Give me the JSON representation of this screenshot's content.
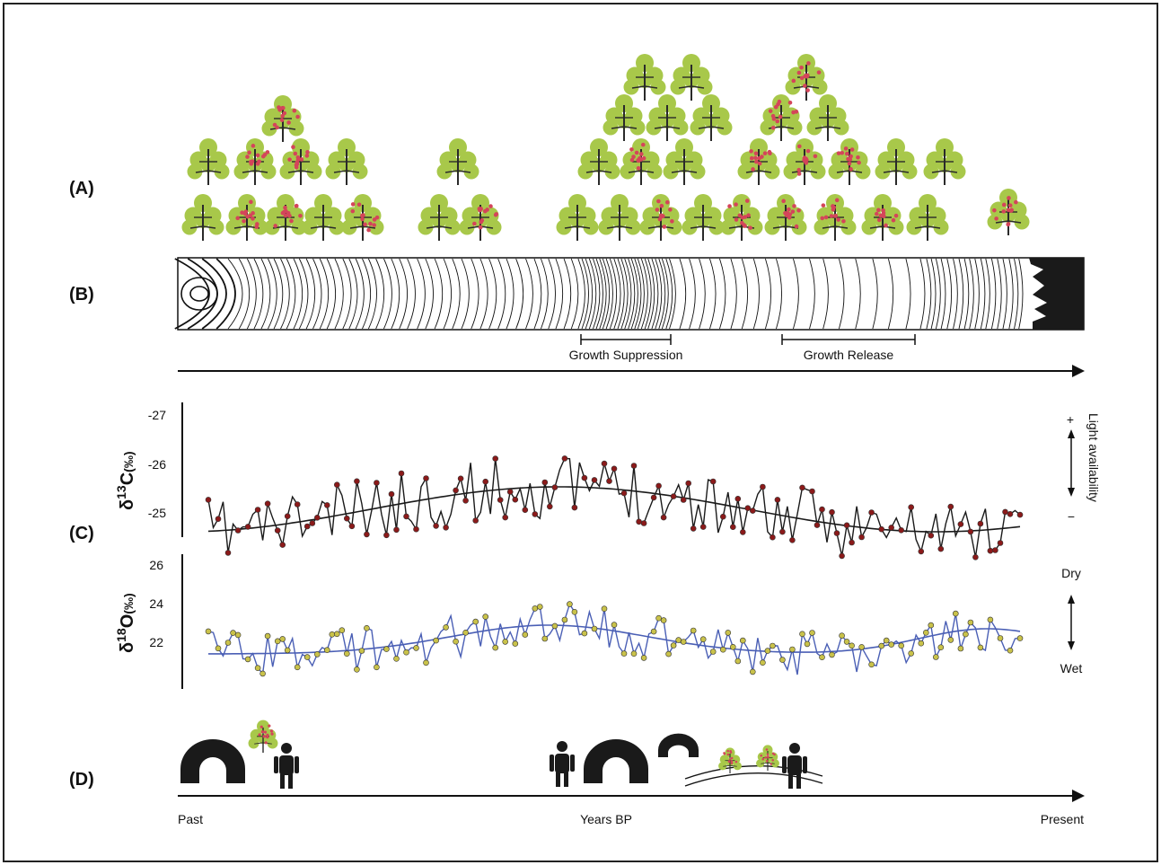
{
  "panels": {
    "a": "(A)",
    "b": "(B)",
    "c": "(C)",
    "d": "(D)"
  },
  "ring_labels": {
    "suppression": "Growth Suppression",
    "release": "Growth Release"
  },
  "axis": {
    "past": "Past",
    "middle": "Years BP",
    "present": "Present"
  },
  "c13": {
    "symbol": "δ",
    "sup": "13",
    "element": "C",
    "unit": "(‰)",
    "ticks": [
      "-27",
      "-26",
      "-25"
    ],
    "side_label": "Light availability",
    "plus": "+",
    "minus": "−",
    "color_line": "#1a1a1a",
    "color_points": "#8b1a1a"
  },
  "o18": {
    "symbol": "δ",
    "sup": "18",
    "element": "O",
    "unit": "(‰)",
    "ticks": [
      "26",
      "24",
      "22"
    ],
    "dry": "Dry",
    "wet": "Wet",
    "color_line": "#4a5fb5",
    "color_points": "#c9c24a"
  },
  "colors": {
    "leaf": "#a8c84a",
    "fruit": "#d4455a",
    "trunk": "#2a2a2a"
  }
}
